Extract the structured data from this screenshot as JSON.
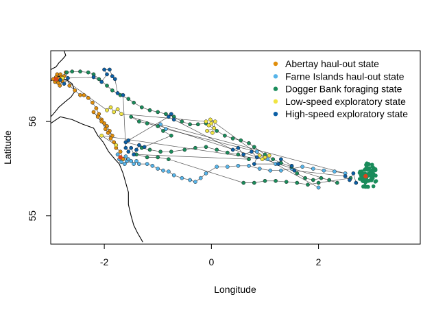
{
  "chart_data": {
    "type": "scatter",
    "xlabel": "Longitude",
    "ylabel": "Latitude",
    "xlim": [
      -3.0,
      3.9
    ],
    "ylim": [
      54.7,
      56.75
    ],
    "xticks": [
      -2,
      0,
      2
    ],
    "yticks": [
      55,
      56
    ],
    "xtick_labels": [
      "-2",
      "0",
      "2"
    ],
    "ytick_labels": [
      "55",
      "56"
    ],
    "grid": false,
    "legend_position": "top-right",
    "track_color": "#1a1a1a",
    "point_outline": "#1a1a1a",
    "endpoint_color": "#d9441c",
    "legend": [
      {
        "label": "Abertay haul-out state",
        "color": "#e08e0b"
      },
      {
        "label": "Farne Islands haul-out state",
        "color": "#56b4e9"
      },
      {
        "label": "Dogger Bank foraging state",
        "color": "#1a8c5b"
      },
      {
        "label": "Low-speed exploratory state",
        "color": "#f0e442"
      },
      {
        "label": "High-speed exploratory state",
        "color": "#0b5fa5"
      }
    ],
    "coastline": [
      [
        -3.0,
        56.43
      ],
      [
        -2.92,
        56.46
      ],
      [
        -2.85,
        56.48
      ],
      [
        -2.78,
        56.46
      ],
      [
        -2.7,
        56.44
      ],
      [
        -2.6,
        56.4
      ],
      [
        -2.55,
        56.32
      ],
      [
        -2.62,
        56.26
      ],
      [
        -2.75,
        56.2
      ],
      [
        -2.85,
        56.15
      ],
      [
        -2.95,
        56.08
      ],
      [
        -3.0,
        56.05
      ]
    ],
    "coastline2": [
      [
        -3.0,
        55.98
      ],
      [
        -2.82,
        56.05
      ],
      [
        -2.6,
        56.02
      ],
      [
        -2.4,
        55.97
      ],
      [
        -2.2,
        55.93
      ],
      [
        -2.12,
        55.85
      ],
      [
        -2.02,
        55.78
      ],
      [
        -1.92,
        55.68
      ],
      [
        -1.8,
        55.6
      ],
      [
        -1.72,
        55.55
      ],
      [
        -1.65,
        55.45
      ],
      [
        -1.6,
        55.35
      ],
      [
        -1.55,
        55.25
      ],
      [
        -1.55,
        55.12
      ],
      [
        -1.5,
        55.0
      ],
      [
        -1.45,
        54.9
      ],
      [
        -1.38,
        54.82
      ],
      [
        -1.28,
        54.72
      ]
    ],
    "coastline3": [
      [
        -2.75,
        56.75
      ],
      [
        -2.72,
        56.7
      ],
      [
        -2.78,
        56.66
      ],
      [
        -2.85,
        56.62
      ],
      [
        -2.9,
        56.58
      ],
      [
        -3.0,
        56.55
      ]
    ],
    "series": [
      {
        "name": "Abertay haul-out state",
        "points": [
          [
            -2.95,
            56.45
          ],
          [
            -2.9,
            56.47
          ],
          [
            -2.85,
            56.45
          ],
          [
            -2.88,
            56.5
          ],
          [
            -2.82,
            56.5
          ],
          [
            -2.8,
            56.47
          ],
          [
            -2.92,
            56.42
          ],
          [
            -2.86,
            56.41
          ],
          [
            -2.78,
            56.43
          ],
          [
            -2.83,
            56.38
          ],
          [
            -2.75,
            56.48
          ],
          [
            -2.72,
            56.52
          ],
          [
            -2.65,
            56.38
          ],
          [
            -2.55,
            56.33
          ],
          [
            -2.45,
            56.28
          ],
          [
            -2.38,
            56.28
          ],
          [
            -2.3,
            56.25
          ],
          [
            -2.22,
            56.2
          ],
          [
            -2.15,
            56.14
          ],
          [
            -2.1,
            56.08
          ],
          [
            -2.05,
            56.02
          ],
          [
            -2.0,
            55.98
          ],
          [
            -1.95,
            55.95
          ],
          [
            -1.9,
            55.9
          ],
          [
            -1.85,
            55.85
          ],
          [
            -2.2,
            56.1
          ],
          [
            -2.12,
            56.05
          ],
          [
            -2.05,
            56.0
          ],
          [
            -1.98,
            55.92
          ],
          [
            -1.93,
            55.88
          ],
          [
            -1.88,
            55.82
          ],
          [
            -1.82,
            55.78
          ],
          [
            -1.78,
            55.72
          ],
          [
            -1.7,
            55.68
          ],
          [
            -1.65,
            55.6
          ]
        ]
      },
      {
        "name": "Farne Islands haul-out state",
        "points": [
          [
            -1.75,
            55.65
          ],
          [
            -1.7,
            55.62
          ],
          [
            -1.68,
            55.57
          ],
          [
            -1.72,
            55.6
          ],
          [
            -1.6,
            55.63
          ],
          [
            -1.58,
            55.58
          ],
          [
            -1.55,
            55.6
          ],
          [
            -1.62,
            55.55
          ],
          [
            -1.5,
            55.58
          ],
          [
            -1.45,
            55.55
          ],
          [
            -1.4,
            55.58
          ],
          [
            -1.35,
            55.55
          ],
          [
            -1.2,
            55.55
          ],
          [
            -1.1,
            55.53
          ],
          [
            -1.0,
            55.5
          ],
          [
            -0.9,
            55.48
          ],
          [
            -0.8,
            55.47
          ],
          [
            -0.7,
            55.43
          ],
          [
            -0.55,
            55.4
          ],
          [
            -0.4,
            55.38
          ],
          [
            -0.3,
            55.36
          ],
          [
            -0.2,
            55.4
          ],
          [
            -0.1,
            55.45
          ],
          [
            0.1,
            55.52
          ],
          [
            0.3,
            55.52
          ],
          [
            0.5,
            55.53
          ],
          [
            0.7,
            55.53
          ],
          [
            0.9,
            55.5
          ],
          [
            1.1,
            55.48
          ],
          [
            1.3,
            55.48
          ],
          [
            1.5,
            55.5
          ],
          [
            1.7,
            55.52
          ],
          [
            1.9,
            55.5
          ],
          [
            2.1,
            55.48
          ],
          [
            2.3,
            55.47
          ],
          [
            2.5,
            55.45
          ],
          [
            -0.95,
            55.97
          ],
          [
            -0.85,
            55.92
          ],
          [
            0.85,
            55.68
          ],
          [
            1.05,
            55.6
          ],
          [
            1.2,
            55.55
          ],
          [
            2.0,
            55.3
          ]
        ]
      },
      {
        "name": "Dogger Bank foraging state",
        "points": [
          [
            -2.7,
            56.52
          ],
          [
            -2.6,
            56.53
          ],
          [
            -2.45,
            56.53
          ],
          [
            -2.3,
            56.52
          ],
          [
            -2.2,
            56.5
          ],
          [
            -2.1,
            56.45
          ],
          [
            -1.95,
            56.38
          ],
          [
            -1.85,
            56.33
          ],
          [
            -1.7,
            56.28
          ],
          [
            -1.55,
            56.24
          ],
          [
            -1.45,
            56.2
          ],
          [
            -1.3,
            56.15
          ],
          [
            -1.15,
            56.12
          ],
          [
            -1.0,
            56.1
          ],
          [
            -0.85,
            56.08
          ],
          [
            -0.7,
            56.05
          ],
          [
            -0.55,
            56.0
          ],
          [
            -0.4,
            55.97
          ],
          [
            -0.25,
            55.97
          ],
          [
            -0.1,
            55.98
          ],
          [
            0.1,
            55.9
          ],
          [
            0.25,
            55.85
          ],
          [
            0.4,
            55.82
          ],
          [
            0.55,
            55.8
          ],
          [
            0.7,
            55.77
          ],
          [
            0.8,
            55.73
          ],
          [
            1.0,
            55.65
          ],
          [
            1.15,
            55.6
          ],
          [
            1.3,
            55.56
          ],
          [
            1.5,
            55.52
          ],
          [
            1.6,
            55.45
          ],
          [
            1.75,
            55.4
          ],
          [
            1.9,
            55.38
          ],
          [
            2.05,
            55.4
          ],
          [
            2.2,
            55.38
          ],
          [
            2.35,
            55.35
          ],
          [
            -1.5,
            56.05
          ],
          [
            -1.35,
            56.0
          ],
          [
            -1.2,
            55.98
          ],
          [
            -1.0,
            55.95
          ],
          [
            -0.9,
            55.9
          ],
          [
            -0.75,
            55.85
          ],
          [
            -1.3,
            55.72
          ],
          [
            -1.15,
            55.7
          ],
          [
            -0.95,
            55.68
          ],
          [
            -0.75,
            55.68
          ],
          [
            -0.5,
            55.7
          ],
          [
            -0.3,
            55.72
          ],
          [
            -0.1,
            55.73
          ],
          [
            0.1,
            55.7
          ],
          [
            0.3,
            55.67
          ],
          [
            0.5,
            55.65
          ],
          [
            0.7,
            55.6
          ],
          [
            -1.4,
            55.65
          ],
          [
            -1.2,
            55.62
          ],
          [
            -1.0,
            55.62
          ],
          [
            -0.8,
            55.6
          ],
          [
            0.6,
            55.35
          ],
          [
            0.8,
            55.35
          ],
          [
            1.0,
            55.37
          ],
          [
            1.2,
            55.37
          ],
          [
            1.4,
            55.36
          ],
          [
            1.6,
            55.35
          ],
          [
            1.8,
            55.33
          ],
          [
            2.0,
            55.35
          ],
          [
            2.6,
            55.4
          ]
        ]
      },
      {
        "name": "Low-speed exploratory state",
        "points": [
          [
            -2.9,
            56.44
          ],
          [
            -2.78,
            56.46
          ],
          [
            -1.95,
            56.12
          ],
          [
            -1.88,
            56.15
          ],
          [
            -1.82,
            56.1
          ],
          [
            -1.75,
            56.13
          ],
          [
            -1.68,
            56.08
          ],
          [
            -0.1,
            56.0
          ],
          [
            -0.05,
            55.96
          ],
          [
            0.0,
            55.98
          ],
          [
            0.05,
            55.93
          ],
          [
            -0.08,
            55.9
          ],
          [
            0.02,
            55.88
          ],
          [
            0.07,
            56.0
          ],
          [
            -0.02,
            56.02
          ],
          [
            0.9,
            55.64
          ],
          [
            1.0,
            55.62
          ],
          [
            1.08,
            55.64
          ],
          [
            0.95,
            55.6
          ],
          [
            -2.05,
            55.85
          ],
          [
            -1.78,
            55.75
          ]
        ]
      },
      {
        "name": "High-speed exploratory state",
        "points": [
          [
            -2.82,
            56.44
          ],
          [
            -2.75,
            56.4
          ],
          [
            -2.68,
            56.46
          ],
          [
            -2.2,
            56.47
          ],
          [
            -2.05,
            56.42
          ],
          [
            -1.95,
            56.5
          ],
          [
            -2.0,
            56.55
          ],
          [
            -1.9,
            56.55
          ],
          [
            -1.85,
            56.48
          ],
          [
            -1.8,
            56.45
          ],
          [
            -1.75,
            56.3
          ],
          [
            -1.65,
            56.28
          ],
          [
            -1.6,
            55.72
          ],
          [
            -1.55,
            55.68
          ],
          [
            -1.5,
            55.72
          ],
          [
            -1.45,
            55.65
          ],
          [
            -1.4,
            55.7
          ],
          [
            -1.35,
            55.75
          ],
          [
            -1.25,
            55.73
          ],
          [
            -1.6,
            55.78
          ],
          [
            -1.55,
            55.8
          ],
          [
            -0.8,
            56.05
          ],
          [
            -0.75,
            56.08
          ],
          [
            -0.7,
            56.02
          ],
          [
            0.4,
            55.7
          ],
          [
            0.5,
            55.72
          ],
          [
            0.6,
            55.65
          ],
          [
            0.75,
            55.68
          ],
          [
            0.85,
            55.62
          ],
          [
            0.8,
            55.55
          ],
          [
            1.25,
            55.55
          ],
          [
            1.3,
            55.6
          ],
          [
            1.5,
            55.53
          ],
          [
            1.55,
            55.48
          ],
          [
            2.5,
            55.42
          ],
          [
            2.58,
            55.38
          ],
          [
            2.65,
            55.45
          ],
          [
            2.7,
            55.35
          ]
        ]
      },
      {
        "name": "Dogger Bank cluster",
        "cluster": {
          "center": [
            2.92,
            55.42
          ],
          "rx": 0.17,
          "ry": 0.14,
          "count": 70,
          "series_index": 2
        }
      }
    ],
    "endpoints": [
      [
        -2.9,
        56.45
      ],
      [
        2.88,
        55.42
      ],
      [
        -1.7,
        55.62
      ]
    ]
  }
}
